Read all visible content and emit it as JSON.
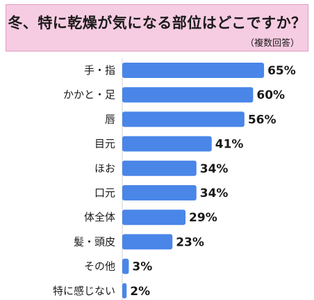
{
  "header": {
    "title": "冬、特に乾燥が気になる部位はどこですか？",
    "subtitle": "（複数回答）"
  },
  "colors": {
    "bar": "#4a86e8",
    "title_bg": "#f6cce2",
    "title_border": "#e39bc2"
  },
  "chart_data": {
    "type": "bar",
    "orientation": "horizontal",
    "title": "冬、特に乾燥が気になる部位はどこですか？",
    "subtitle": "（複数回答）",
    "categories": [
      "手・指",
      "かかと・足",
      "唇",
      "目元",
      "ほお",
      "口元",
      "体全体",
      "髪・頭皮",
      "その他",
      "特に感じない"
    ],
    "values": [
      65,
      60,
      56,
      41,
      34,
      34,
      29,
      23,
      3,
      2
    ],
    "value_labels": [
      "65%",
      "60%",
      "56%",
      "41%",
      "34%",
      "34%",
      "29%",
      "23%",
      "3%",
      "2%"
    ],
    "unit": "%",
    "xlim": [
      0,
      100
    ],
    "grid": false,
    "legend": "none"
  }
}
